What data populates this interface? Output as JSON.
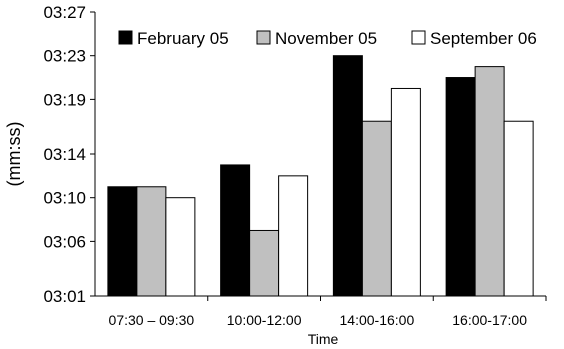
{
  "chart_data": {
    "type": "bar",
    "title": "",
    "xlabel": "Time",
    "ylabel": "(mm:ss)",
    "categories": [
      "07:30 – 09:30",
      "10:00-12:00",
      "14:00-16:00",
      "16:00-17:00"
    ],
    "y_ticks": [
      "03:01",
      "03:06",
      "03:10",
      "03:14",
      "03:19",
      "03:23",
      "03:27"
    ],
    "ylim": [
      "03:01",
      "03:27"
    ],
    "series": [
      {
        "name": "February 05",
        "color": "#000000",
        "values": [
          "03:11",
          "03:13",
          "03:23",
          "03:21"
        ]
      },
      {
        "name": "November 05",
        "color": "#c0c0c0",
        "values": [
          "03:11",
          "03:07",
          "03:17",
          "03:22"
        ]
      },
      {
        "name": "September 06",
        "color": "#ffffff",
        "values": [
          "03:10",
          "03:12",
          "03:20",
          "03:17"
        ]
      }
    ],
    "grid": false,
    "legend_position": "top"
  }
}
